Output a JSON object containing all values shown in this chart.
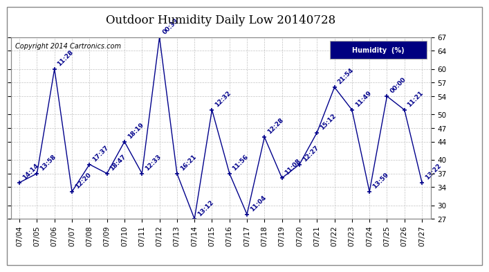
{
  "title": "Outdoor Humidity Daily Low 20140728",
  "copyright": "Copyright 2014 Cartronics.com",
  "legend_label": "Humidity  (%)",
  "legend_bg": "#000080",
  "legend_fg": "#ffffff",
  "line_color": "#00008B",
  "bg_color": "#ffffff",
  "grid_color": "#bbbbbb",
  "ylim": [
    27,
    67
  ],
  "yticks": [
    27,
    30,
    34,
    37,
    40,
    44,
    47,
    50,
    54,
    57,
    60,
    64,
    67
  ],
  "dates": [
    "07/04",
    "07/05",
    "07/06",
    "07/07",
    "07/08",
    "07/09",
    "07/10",
    "07/11",
    "07/12",
    "07/13",
    "07/14",
    "07/15",
    "07/16",
    "07/17",
    "07/18",
    "07/19",
    "07/20",
    "07/21",
    "07/22",
    "07/23",
    "07/24",
    "07/25",
    "07/26",
    "07/27"
  ],
  "values": [
    35,
    37,
    60,
    33,
    39,
    37,
    44,
    37,
    67,
    37,
    27,
    51,
    37,
    28,
    45,
    36,
    39,
    46,
    56,
    51,
    33,
    54,
    51,
    35
  ],
  "times": [
    "14:14",
    "13:58",
    "11:28",
    "12:20",
    "17:37",
    "18:47",
    "18:19",
    "12:33",
    "00:33",
    "16:21",
    "13:12",
    "12:32",
    "11:56",
    "11:04",
    "12:28",
    "11:08",
    "12:27",
    "15:12",
    "21:54",
    "11:49",
    "13:59",
    "00:00",
    "11:21",
    "13:22"
  ],
  "title_fontsize": 12,
  "label_fontsize": 6.5,
  "tick_fontsize": 7.5,
  "copyright_fontsize": 7
}
